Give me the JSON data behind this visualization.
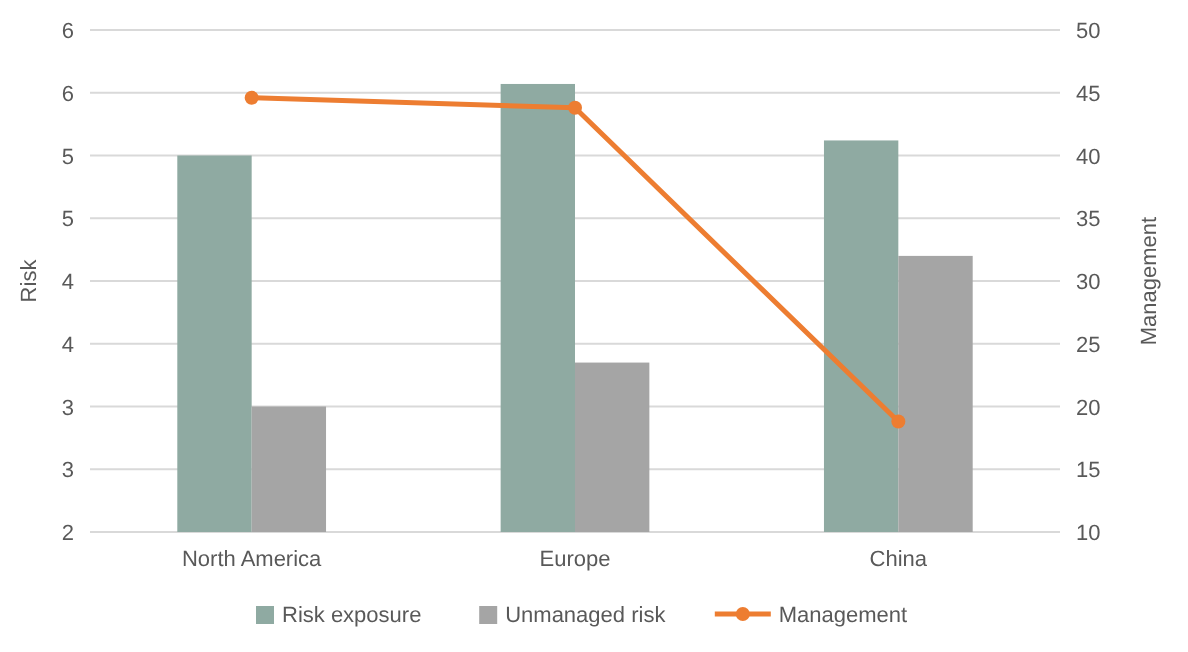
{
  "chart_data": {
    "type": "bar",
    "ylabel": "Risk",
    "y2label": "Management",
    "categories": [
      "North America",
      "Europe",
      "China"
    ],
    "series": [
      {
        "name": "Risk exposure",
        "color": "#8faaa2",
        "values": [
          5.0,
          5.57,
          5.12
        ]
      },
      {
        "name": "Unmanaged risk",
        "color": "#a5a5a5",
        "values": [
          3.0,
          3.35,
          4.2
        ]
      },
      {
        "name": "Management",
        "type": "line",
        "axis": "y2",
        "color": "#ed7d31",
        "values": [
          44.6,
          43.8,
          18.8
        ]
      }
    ],
    "ylim": [
      2,
      6
    ],
    "yticks": [
      2,
      {
        "value": 2.5,
        "label": "3"
      },
      3,
      {
        "value": 3.5,
        "label": "4"
      },
      4,
      {
        "value": 4.5,
        "label": "5"
      },
      5,
      {
        "value": 5.5,
        "label": "6"
      },
      6
    ],
    "y2lim": [
      10,
      50
    ],
    "y2ticks": [
      10,
      15,
      20,
      25,
      30,
      35,
      40,
      45,
      50
    ],
    "grid": "y",
    "legend": "bottom",
    "marker": "circle",
    "line_style": "solid"
  }
}
